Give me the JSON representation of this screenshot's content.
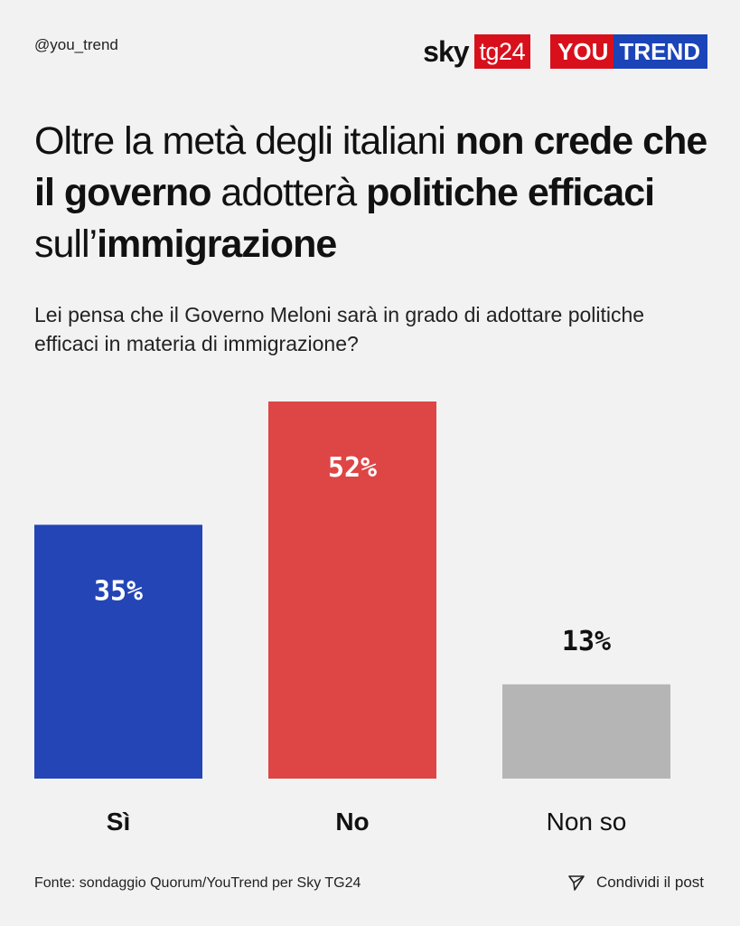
{
  "header": {
    "handle": "@you_trend",
    "sky_logo": {
      "sky": "sky",
      "tg": "tg24"
    },
    "youtrend_logo": {
      "you": "YOU",
      "trend": "TREND"
    }
  },
  "headline": {
    "parts": [
      {
        "text": "Oltre la metà degli italiani ",
        "bold": false
      },
      {
        "text": "non crede che il governo",
        "bold": true
      },
      {
        "text": " adotterà ",
        "bold": false
      },
      {
        "text": "politiche efficaci",
        "bold": true
      },
      {
        "text": " sull’",
        "bold": false
      },
      {
        "text": "immigrazione",
        "bold": true
      }
    ]
  },
  "question": "Lei pensa che il Governo Meloni sarà in grado di adottare politiche efficaci in materia di immigrazione?",
  "chart_data": {
    "type": "bar",
    "title": "Oltre la metà degli italiani non crede che il governo adotterà politiche efficaci sull’immigrazione",
    "categories": [
      "Sì",
      "No",
      "Non so"
    ],
    "values": [
      35,
      52,
      13
    ],
    "value_labels": [
      "35%",
      "52%",
      "13%"
    ],
    "colors": [
      "#2345b6",
      "#de4545",
      "#b5b5b5"
    ],
    "category_bold": [
      true,
      true,
      false
    ],
    "ylim": [
      0,
      52
    ],
    "xlabel": "",
    "ylabel": ""
  },
  "footer": {
    "source": "Fonte: sondaggio Quorum/YouTrend per Sky TG24",
    "share_label": "Condividi il post",
    "share_icon": "send-icon"
  }
}
